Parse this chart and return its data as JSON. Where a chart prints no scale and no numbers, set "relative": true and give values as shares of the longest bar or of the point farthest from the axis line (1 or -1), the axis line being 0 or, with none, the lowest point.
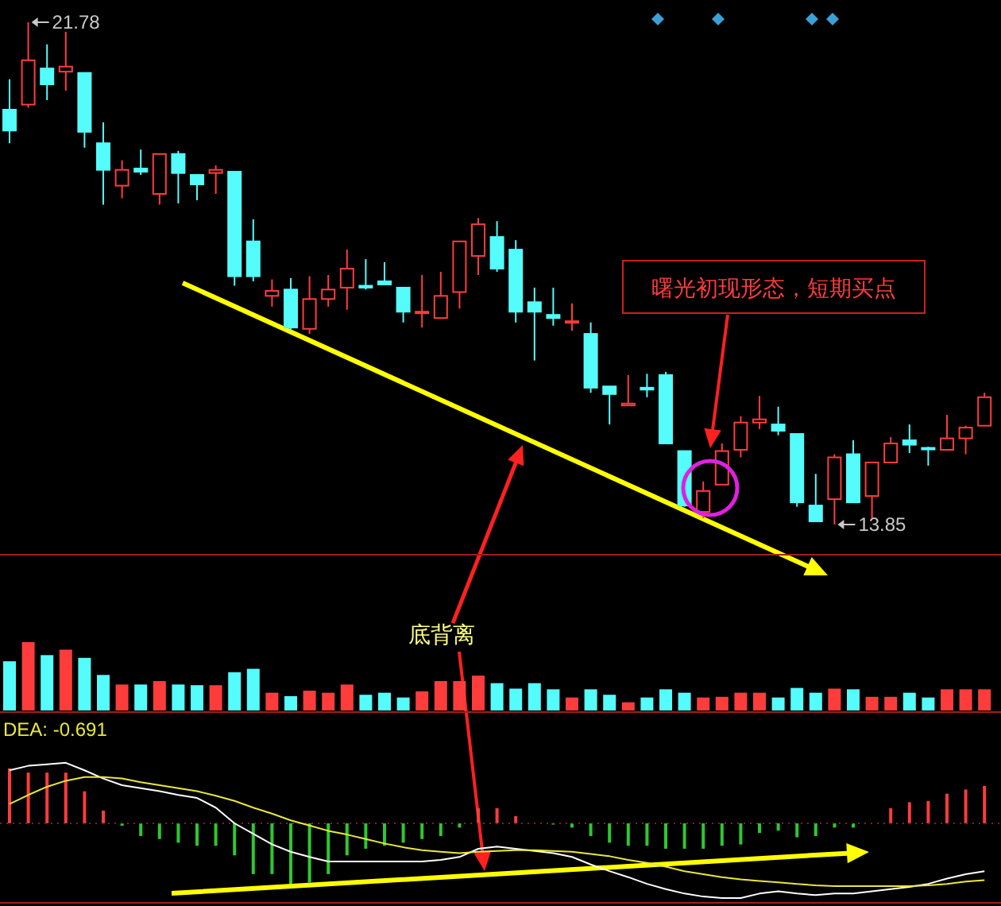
{
  "chart_data": [
    {
      "type": "candlestick",
      "categories": [
        null,
        null,
        null,
        null,
        null,
        null,
        null,
        null,
        null,
        null,
        null,
        null,
        null,
        null,
        null,
        null,
        null,
        null,
        null,
        null,
        null,
        null,
        null,
        null,
        null,
        null,
        null,
        null,
        null,
        null,
        null,
        null,
        null,
        null,
        null,
        null,
        null,
        null,
        null,
        null,
        null,
        null,
        null,
        null,
        null,
        null,
        null,
        null,
        null,
        null,
        null,
        null,
        null
      ],
      "ohlc": [
        [
          20.4,
          20.88,
          19.87,
          20.07
        ],
        [
          20.48,
          21.78,
          20.43,
          21.18
        ],
        [
          21.05,
          21.43,
          20.55,
          20.8
        ],
        [
          21.0,
          21.63,
          20.7,
          21.08
        ],
        [
          20.98,
          20.98,
          19.8,
          20.05
        ],
        [
          19.87,
          20.2,
          18.9,
          19.45
        ],
        [
          19.2,
          19.6,
          19.0,
          19.45
        ],
        [
          19.47,
          19.77,
          19.37,
          19.42
        ],
        [
          19.07,
          19.7,
          18.9,
          19.7
        ],
        [
          19.7,
          19.75,
          18.92,
          19.4
        ],
        [
          19.37,
          19.37,
          18.97,
          19.22
        ],
        [
          19.4,
          19.52,
          19.07,
          19.45
        ],
        [
          19.42,
          19.42,
          17.62,
          17.77
        ],
        [
          18.32,
          18.67,
          17.69,
          17.77
        ],
        [
          17.46,
          17.72,
          17.29,
          17.54
        ],
        [
          17.56,
          17.74,
          16.91,
          16.96
        ],
        [
          16.94,
          17.77,
          16.86,
          17.41
        ],
        [
          17.41,
          17.79,
          17.29,
          17.56
        ],
        [
          17.59,
          18.19,
          17.24,
          17.89
        ],
        [
          17.62,
          18.04,
          17.56,
          17.59
        ],
        [
          17.69,
          17.99,
          17.64,
          17.64
        ],
        [
          17.59,
          17.59,
          17.04,
          17.21
        ],
        [
          17.19,
          17.79,
          16.96,
          17.21
        ],
        [
          17.11,
          17.84,
          17.11,
          17.46
        ],
        [
          17.52,
          18.32,
          17.26,
          18.32
        ],
        [
          18.09,
          18.69,
          17.79,
          18.59
        ],
        [
          18.39,
          18.64,
          17.84,
          17.89
        ],
        [
          18.19,
          18.34,
          17.04,
          17.21
        ],
        [
          17.36,
          17.59,
          16.44,
          17.21
        ],
        [
          17.16,
          17.59,
          16.99,
          17.11
        ],
        [
          17.04,
          17.34,
          16.91,
          17.06
        ],
        [
          16.86,
          17.04,
          15.93,
          16.01
        ],
        [
          16.03,
          16.03,
          15.43,
          15.91
        ],
        [
          15.73,
          16.21,
          15.73,
          15.76
        ],
        [
          16.01,
          16.23,
          15.86,
          15.98
        ],
        [
          16.21,
          16.26,
          15.13,
          15.13
        ],
        [
          15.01,
          15.01,
          14.13,
          14.15
        ],
        [
          14.05,
          14.53,
          13.95,
          14.38
        ],
        [
          14.48,
          15.13,
          14.48,
          15.01
        ],
        [
          15.03,
          15.56,
          14.91,
          15.46
        ],
        [
          15.46,
          15.88,
          15.36,
          15.51
        ],
        [
          15.43,
          15.71,
          15.26,
          15.33
        ],
        [
          15.28,
          15.28,
          14.13,
          14.2
        ],
        [
          14.15,
          14.65,
          13.9,
          13.9
        ],
        [
          14.25,
          14.96,
          13.85,
          14.91
        ],
        [
          14.96,
          15.18,
          14.2,
          14.2
        ],
        [
          14.3,
          14.83,
          13.95,
          14.83
        ],
        [
          14.83,
          15.23,
          14.83,
          15.13
        ],
        [
          15.18,
          15.43,
          14.98,
          15.11
        ],
        [
          15.06,
          15.08,
          14.78,
          15.05
        ],
        [
          15.03,
          15.58,
          15.03,
          15.21
        ],
        [
          15.21,
          15.41,
          14.96,
          15.38
        ],
        [
          15.41,
          15.93,
          15.41,
          15.86
        ]
      ],
      "colors": [
        "#54fcfc",
        "#ff3c3c",
        "#54fcfc",
        "#ff3c3c",
        "#54fcfc",
        "#54fcfc",
        "#ff3c3c",
        "#54fcfc",
        "#ff3c3c",
        "#54fcfc",
        "#54fcfc",
        "#ff3c3c",
        "#54fcfc",
        "#54fcfc",
        "#ff3c3c",
        "#54fcfc",
        "#ff3c3c",
        "#ff3c3c",
        "#ff3c3c",
        "#54fcfc",
        "#54fcfc",
        "#54fcfc",
        "#ff3c3c",
        "#ff3c3c",
        "#ff3c3c",
        "#ff3c3c",
        "#54fcfc",
        "#54fcfc",
        "#54fcfc",
        "#54fcfc",
        "#ff3c3c",
        "#54fcfc",
        "#54fcfc",
        "#ff3c3c",
        "#54fcfc",
        "#54fcfc",
        "#54fcfc",
        "#ff3c3c",
        "#ff3c3c",
        "#ff3c3c",
        "#ff3c3c",
        "#54fcfc",
        "#54fcfc",
        "#54fcfc",
        "#ff3c3c",
        "#54fcfc",
        "#ff3c3c",
        "#ff3c3c",
        "#54fcfc",
        "#54fcfc",
        "#ff3c3c",
        "#ff3c3c",
        "#ff3c3c"
      ],
      "tick_labels": false,
      "annotations": [
        "21.78",
        "13.85",
        "曙光初现形态，短期买点",
        "底背离"
      ]
    },
    {
      "type": "bar",
      "relative": true,
      "tick_labels": false,
      "categories": [
        null,
        null,
        null,
        null,
        null,
        null,
        null,
        null,
        null,
        null,
        null,
        null,
        null,
        null,
        null,
        null,
        null,
        null,
        null,
        null,
        null,
        null,
        null,
        null,
        null,
        null,
        null,
        null,
        null,
        null,
        null,
        null,
        null,
        null,
        null,
        null,
        null,
        null,
        null,
        null,
        null,
        null,
        null,
        null,
        null,
        null,
        null,
        null,
        null,
        null,
        null,
        null,
        null
      ],
      "values": [
        0.72,
        1,
        0.81,
        0.89,
        0.77,
        0.52,
        0.38,
        0.38,
        0.43,
        0.38,
        0.37,
        0.37,
        0.56,
        0.61,
        0.26,
        0.21,
        0.29,
        0.26,
        0.38,
        0.23,
        0.26,
        0.19,
        0.28,
        0.43,
        0.43,
        0.51,
        0.4,
        0.32,
        0.4,
        0.31,
        0.19,
        0.31,
        0.23,
        0.12,
        0.19,
        0.31,
        0.26,
        0.19,
        0.2,
        0.26,
        0.26,
        0.19,
        0.33,
        0.26,
        0.32,
        0.31,
        0.2,
        0.2,
        0.26,
        0.19,
        0.31,
        0.31,
        0.31
      ],
      "colors": [
        "#54fcfc",
        "#ff3c3c",
        "#54fcfc",
        "#ff3c3c",
        "#54fcfc",
        "#54fcfc",
        "#ff3c3c",
        "#54fcfc",
        "#ff3c3c",
        "#54fcfc",
        "#54fcfc",
        "#ff3c3c",
        "#54fcfc",
        "#54fcfc",
        "#ff3c3c",
        "#54fcfc",
        "#ff3c3c",
        "#ff3c3c",
        "#ff3c3c",
        "#54fcfc",
        "#54fcfc",
        "#54fcfc",
        "#ff3c3c",
        "#ff3c3c",
        "#ff3c3c",
        "#ff3c3c",
        "#54fcfc",
        "#54fcfc",
        "#54fcfc",
        "#54fcfc",
        "#ff3c3c",
        "#54fcfc",
        "#54fcfc",
        "#ff3c3c",
        "#54fcfc",
        "#54fcfc",
        "#54fcfc",
        "#ff3c3c",
        "#ff3c3c",
        "#ff3c3c",
        "#ff3c3c",
        "#54fcfc",
        "#54fcfc",
        "#54fcfc",
        "#ff3c3c",
        "#54fcfc",
        "#ff3c3c",
        "#ff3c3c",
        "#54fcfc",
        "#54fcfc",
        "#ff3c3c",
        "#ff3c3c",
        "#ff3c3c"
      ]
    },
    {
      "type": "bar",
      "relative": true,
      "tick_labels": false,
      "title": "DEA: -0.691",
      "categories": [
        null,
        null,
        null,
        null,
        null,
        null,
        null,
        null,
        null,
        null,
        null,
        null,
        null,
        null,
        null,
        null,
        null,
        null,
        null,
        null,
        null,
        null,
        null,
        null,
        null,
        null,
        null,
        null,
        null,
        null,
        null,
        null,
        null,
        null,
        null,
        null,
        null,
        null,
        null,
        null,
        null,
        null,
        null,
        null,
        null,
        null,
        null,
        null,
        null,
        null,
        null,
        null,
        null
      ],
      "series": [
        {
          "type": "bar",
          "values": [
            0.91,
            0.84,
            0.84,
            0.84,
            0.53,
            0.21,
            -0.04,
            -0.21,
            -0.26,
            -0.32,
            -0.37,
            -0.37,
            -0.53,
            -0.84,
            -0.84,
            -1,
            -0.98,
            -0.84,
            -0.53,
            -0.42,
            -0.37,
            -0.32,
            -0.26,
            -0.21,
            -0.07,
            0.25,
            0.25,
            0.12,
            null,
            -0.02,
            -0.07,
            -0.21,
            -0.32,
            -0.37,
            -0.37,
            -0.42,
            -0.42,
            -0.42,
            -0.37,
            -0.35,
            -0.16,
            -0.12,
            -0.23,
            -0.21,
            -0.07,
            -0.07,
            null,
            0.25,
            0.35,
            0.37,
            0.49,
            0.56,
            0.62
          ],
          "colors": [
            "#ff3c3c",
            "#ff3c3c",
            "#ff3c3c",
            "#ff3c3c",
            "#ff3c3c",
            "#ff3c3c",
            "#2ec82e",
            "#2ec82e",
            "#2ec82e",
            "#2ec82e",
            "#2ec82e",
            "#2ec82e",
            "#2ec82e",
            "#2ec82e",
            "#2ec82e",
            "#2ec82e",
            "#2ec82e",
            "#2ec82e",
            "#2ec82e",
            "#2ec82e",
            "#2ec82e",
            "#2ec82e",
            "#2ec82e",
            "#2ec82e",
            "#2ec82e",
            "#ff3c3c",
            "#ff3c3c",
            "#ff3c3c",
            "#ff3c3c",
            "#2ec82e",
            "#2ec82e",
            "#2ec82e",
            "#2ec82e",
            "#2ec82e",
            "#2ec82e",
            "#2ec82e",
            "#2ec82e",
            "#2ec82e",
            "#2ec82e",
            "#2ec82e",
            "#2ec82e",
            "#2ec82e",
            "#2ec82e",
            "#2ec82e",
            "#2ec82e",
            "#2ec82e",
            "#ff3c3c",
            "#ff3c3c",
            "#ff3c3c",
            "#ff3c3c",
            "#ff3c3c",
            "#ff3c3c",
            "#ff3c3c"
          ]
        }
      ]
    },
    {
      "type": "line",
      "relative": true,
      "tick_labels": false,
      "categories": [
        null,
        null,
        null,
        null,
        null,
        null,
        null,
        null,
        null,
        null,
        null,
        null,
        null,
        null,
        null,
        null,
        null,
        null,
        null,
        null,
        null,
        null,
        null,
        null,
        null,
        null,
        null,
        null,
        null,
        null,
        null,
        null,
        null,
        null,
        null,
        null,
        null,
        null,
        null,
        null,
        null,
        null,
        null,
        null,
        null,
        null,
        null,
        null,
        null,
        null,
        null,
        null,
        null
      ],
      "series": [
        {
          "type": "line",
          "color": "#ffffff",
          "values": [
            0.71,
            0.77,
            0.79,
            0.81,
            0.71,
            0.6,
            0.51,
            0.47,
            0.43,
            0.38,
            0.34,
            0.21,
            0,
            -0.14,
            -0.28,
            -0.38,
            -0.45,
            -0.51,
            -0.51,
            -0.51,
            -0.51,
            -0.51,
            -0.51,
            -0.49,
            -0.45,
            -0.34,
            -0.31,
            -0.34,
            -0.37,
            -0.4,
            -0.45,
            -0.55,
            -0.64,
            -0.72,
            -0.81,
            -0.88,
            -0.94,
            -0.98,
            -1,
            -1,
            -0.94,
            -0.91,
            -0.94,
            -0.96,
            -0.94,
            -0.94,
            -0.91,
            -0.88,
            -0.85,
            -0.81,
            -0.74,
            -0.68,
            -0.64
          ]
        },
        {
          "type": "line",
          "color": "#e8e83c",
          "values": [
            0.26,
            0.38,
            0.49,
            0.57,
            0.62,
            0.62,
            0.6,
            0.55,
            0.51,
            0.47,
            0.43,
            0.37,
            0.3,
            0.21,
            0.13,
            0.04,
            -0.03,
            -0.1,
            -0.15,
            -0.21,
            -0.27,
            -0.32,
            -0.36,
            -0.38,
            -0.4,
            -0.38,
            -0.37,
            -0.36,
            -0.36,
            -0.37,
            -0.38,
            -0.41,
            -0.44,
            -0.49,
            -0.53,
            -0.58,
            -0.64,
            -0.68,
            -0.72,
            -0.75,
            -0.77,
            -0.79,
            -0.81,
            -0.83,
            -0.84,
            -0.84,
            -0.84,
            -0.84,
            -0.84,
            -0.83,
            -0.81,
            -0.78,
            -0.76
          ]
        }
      ]
    }
  ]
}
